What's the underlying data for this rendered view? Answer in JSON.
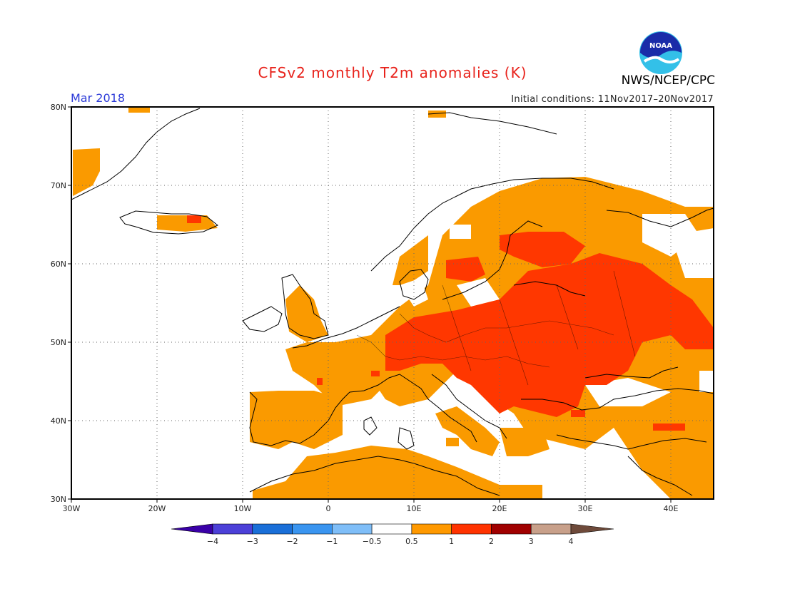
{
  "header": {
    "title": "CFSv2 monthly T2m anomalies (K)",
    "valid_month": "Mar 2018",
    "initial_conditions": "Initial conditions: 11Nov2017–20Nov2017",
    "agency": "NWS/NCEP/CPC",
    "logo_text": "NOAA"
  },
  "map": {
    "lat_labels": [
      "80N",
      "70N",
      "60N",
      "50N",
      "40N",
      "30N"
    ],
    "lon_labels": [
      "30W",
      "20W",
      "10W",
      "0",
      "10E",
      "20E",
      "30E",
      "40E"
    ],
    "lat_range": [
      30,
      80
    ],
    "lon_range": [
      -30,
      45
    ],
    "grid": "dotted"
  },
  "colorbar": {
    "ticks": [
      "−4",
      "−3",
      "−2",
      "−1",
      "−0.5",
      "0.5",
      "1",
      "2",
      "3",
      "4"
    ],
    "colors": [
      "#3a00a8",
      "#4c40d8",
      "#1a6fd8",
      "#3a95f0",
      "#7fbef8",
      "#ffffff",
      "#ff9900",
      "#ff3300",
      "#a00000",
      "#c8a08a",
      "#6e4a3a"
    ]
  },
  "colors": {
    "anom_0_5_to_1": "#fa9a00",
    "anom_1_to_2": "#ff3700",
    "anom_2_to_3": "#a00000",
    "coastline": "#000000"
  }
}
